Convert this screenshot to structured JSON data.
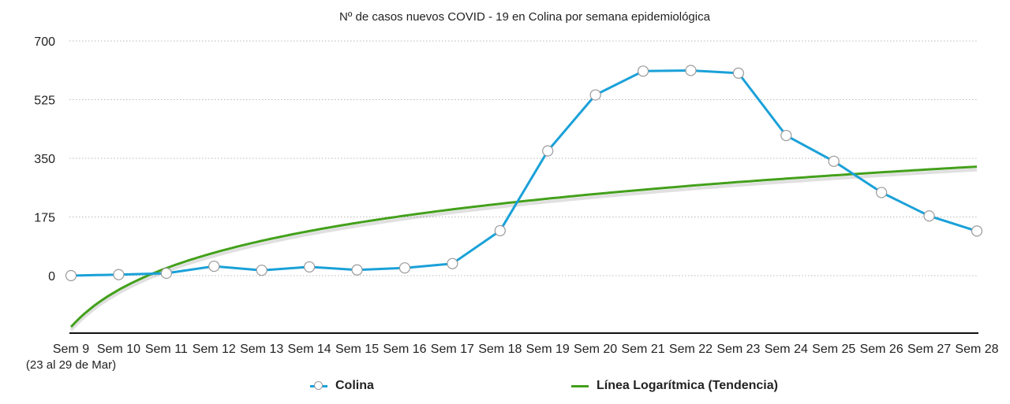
{
  "chart_data": {
    "type": "line",
    "title": "Nº de casos nuevos COVID - 19 en Colina por semana epidemiológica",
    "categories": [
      "Sem 9",
      "Sem 10",
      "Sem 11",
      "Sem 12",
      "Sem 13",
      "Sem 14",
      "Sem 15",
      "Sem 16",
      "Sem 17",
      "Sem 18",
      "Sem 19",
      "Sem 20",
      "Sem 21",
      "Sem 22",
      "Sem 23",
      "Sem 24",
      "Sem 25",
      "Sem 26",
      "Sem 27",
      "Sem 28"
    ],
    "first_category_sublabel": "(23 al 29 de Mar)",
    "yticks": [
      0,
      175,
      350,
      525,
      700
    ],
    "ylim": [
      -175,
      700
    ],
    "grid": true,
    "legend_position": "bottom",
    "series": [
      {
        "name": "Colina",
        "color": "#1aa1d8",
        "marker": "circle",
        "values": [
          0,
          3,
          7,
          28,
          16,
          26,
          17,
          23,
          36,
          134,
          372,
          539,
          610,
          612,
          604,
          418,
          341,
          248,
          178,
          133
        ]
      },
      {
        "name": "Línea Logarítmica (Tendencia)",
        "color": "#43a01b",
        "trend": "logarithmic",
        "values": [
          -153,
          -43,
          22,
          67,
          103,
          132,
          156,
          178,
          197,
          213,
          228,
          242,
          255,
          267,
          278,
          289,
          298,
          308,
          317,
          325
        ]
      }
    ]
  }
}
